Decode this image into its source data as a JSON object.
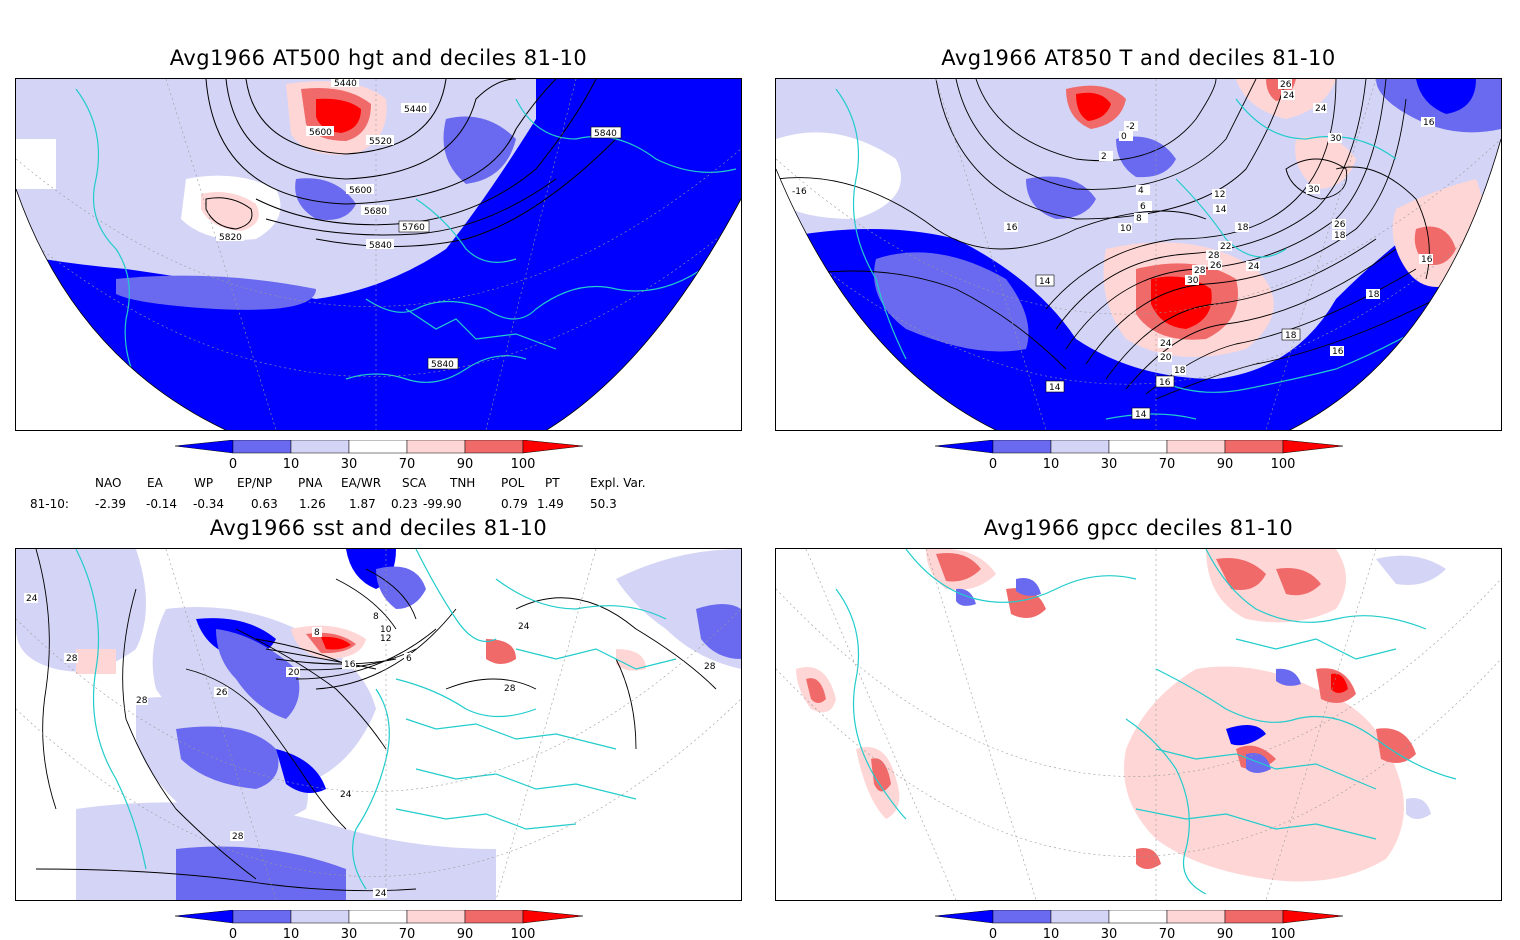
{
  "panels": [
    {
      "id": "p1",
      "title": "Avg1966 AT500 hgt and deciles 81-10",
      "contour_labels": [
        "5440",
        "5440",
        "5600",
        "5520",
        "5840",
        "5600",
        "5680",
        "5760",
        "5820",
        "5840",
        "5840"
      ]
    },
    {
      "id": "p2",
      "title": "Avg1966 AT850 T and deciles 81-10",
      "contour_labels": [
        "26",
        "24",
        "-2",
        "0",
        "2",
        "24",
        "30",
        "16",
        "-16",
        "4",
        "6",
        "8",
        "12",
        "14",
        "30",
        "16",
        "10",
        "18",
        "22",
        "28",
        "26",
        "26",
        "18",
        "24",
        "28",
        "30",
        "14",
        "16",
        "18",
        "24",
        "20",
        "18",
        "16",
        "18",
        "14",
        "16",
        "14"
      ]
    },
    {
      "id": "p3",
      "title": "Avg1966 sst and deciles 81-10",
      "contour_labels": [
        "24",
        "28",
        "26",
        "28",
        "24",
        "28",
        "24",
        "8",
        "12",
        "16",
        "20",
        "6",
        "8",
        "10",
        "24",
        "28",
        "28"
      ]
    },
    {
      "id": "p4",
      "title": "Avg1966 gpcc deciles 81-10",
      "contour_labels": []
    }
  ],
  "colorbar": {
    "labels": [
      "0",
      "10",
      "30",
      "70",
      "90",
      "100"
    ],
    "colors": [
      "#0000ff",
      "#6a6af0",
      "#d4d4f6",
      "#ffffff",
      "#ffd6d6",
      "#f06a6a",
      "#ff0000"
    ]
  },
  "indices": {
    "row_label": "81-10:",
    "names": [
      "NAO",
      "EA",
      "WP",
      "EP/NP",
      "PNA",
      "EA/WR",
      "SCA",
      "TNH",
      "POL",
      "PT",
      "Expl. Var."
    ],
    "values": [
      "-2.39",
      "-0.14",
      "-0.34",
      "0.63",
      "1.26",
      "1.87",
      "0.23",
      "-99.90",
      "0.79",
      "1.49",
      "50.3"
    ]
  }
}
